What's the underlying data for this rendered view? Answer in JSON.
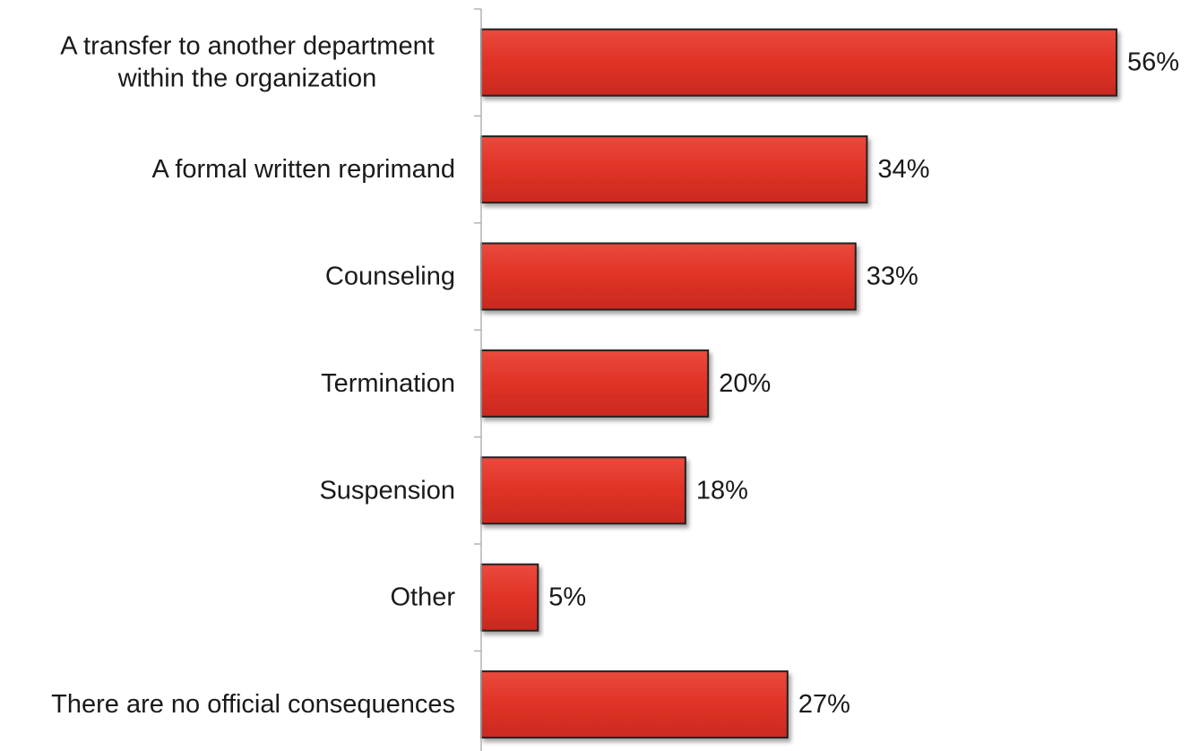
{
  "chart_data": {
    "type": "bar",
    "orientation": "horizontal",
    "categories": [
      "A transfer to another department within the organization",
      "A formal written reprimand",
      "Counseling",
      "Termination",
      "Suspension",
      "Other",
      "There are no official consequences"
    ],
    "category_lines": [
      [
        "A transfer to another department",
        "within the organization"
      ],
      [
        "A formal written reprimand"
      ],
      [
        "Counseling"
      ],
      [
        "Termination"
      ],
      [
        "Suspension"
      ],
      [
        "Other"
      ],
      [
        "There are no official consequences"
      ]
    ],
    "values": [
      56,
      34,
      33,
      20,
      18,
      5,
      27
    ],
    "value_labels": [
      "56%",
      "34%",
      "33%",
      "20%",
      "18%",
      "5%",
      "27%"
    ],
    "unit": "%",
    "xlim": [
      0,
      56
    ],
    "grid": false,
    "legend": "none",
    "bar_color": "#e03226",
    "bar_outline_color": "#222222",
    "axis_color": "#b3b3b3"
  }
}
